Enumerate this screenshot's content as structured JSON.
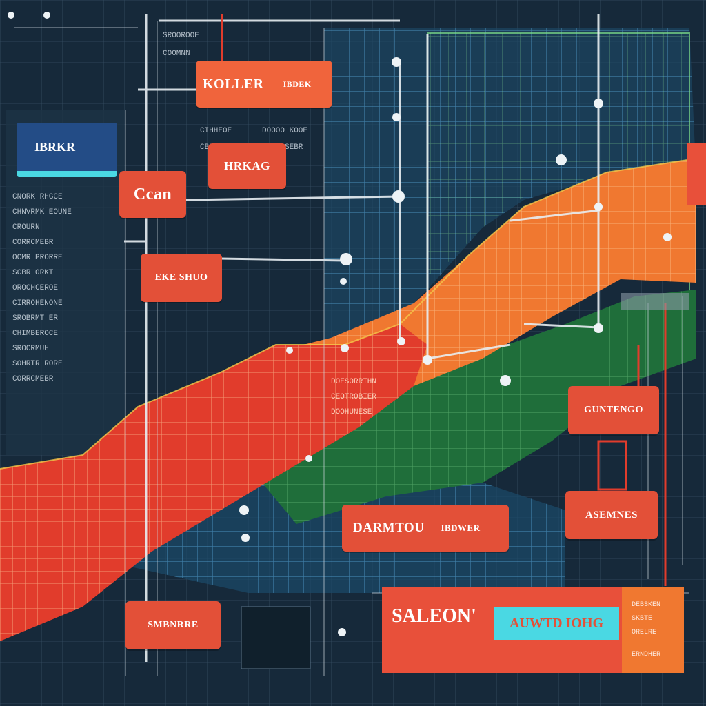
{
  "colors": {
    "background": "#16293a",
    "grid_blue": "#4fa3d8",
    "grid_green": "#7fe08a",
    "band_orange": "#f07830",
    "band_red": "#e13c2c",
    "band_green": "#1f6e3a",
    "label_red": "#e35038",
    "accent_cyan": "#4ad8e3"
  },
  "labels": {
    "koller": "KOLLER",
    "koller_sub": "IBDEK",
    "hrkag": "HRKAG",
    "ccan": "Ccan",
    "ekhuo": "EKE SHUO",
    "guntengo": "GUNTENGO",
    "asemnes": "ASEMNES",
    "darmo": "DARMTOU",
    "darmo_sub": "IBDWER",
    "smbnr": "SMBNRRE",
    "saleon": "SALEON'",
    "cyan_chip": "AUWTD IOHG",
    "right_column": [
      "DEBSKEN",
      "SKBTE",
      "ORELRE",
      "ERNDHER"
    ]
  },
  "left_panel": {
    "header_chip": "IBRKR",
    "lines": [
      "CNORK RHGCE",
      "CHNVRMK EOUNE",
      "CROURN",
      "CORRCMEBR",
      "OCMR PRORRE",
      "SCBR ORKT",
      "OROCHCEROE",
      "CIRROHENONE",
      "SROBRMT ER",
      "CHIMBEROCE",
      "SROCRMUH",
      "SOHRTR RORE",
      "CORRCMEBR"
    ]
  },
  "top_text": {
    "lines": [
      "SROOROOE",
      "COOMNN",
      "CIHHEOE",
      "CBREDEG",
      "DOOOO KOOE",
      "COORDSEBR"
    ]
  },
  "map_text": {
    "lines": [
      "DOESORRTHN",
      "CEOTROBIER",
      "DOOHUNESE"
    ]
  }
}
